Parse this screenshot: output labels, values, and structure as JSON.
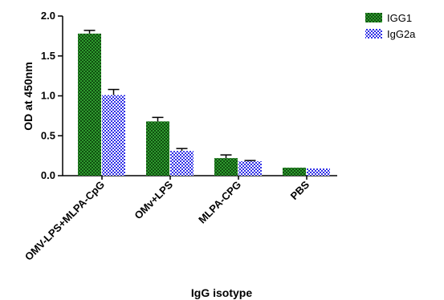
{
  "chart_data": {
    "type": "bar",
    "title": "",
    "xlabel": "IgG isotype",
    "ylabel": "OD at 450nm",
    "ylim": [
      0,
      2.0
    ],
    "yticks": [
      "0.0",
      "0.5",
      "1.0",
      "1.5",
      "2.0"
    ],
    "ytick_values": [
      0,
      0.5,
      1.0,
      1.5,
      2.0
    ],
    "categories": [
      "OMV-LPS+MLPA-CpG",
      "OMv+LPS",
      "MLPA-CPG",
      "PBS"
    ],
    "series": [
      {
        "name": "IGG1",
        "values": [
          1.78,
          0.68,
          0.22,
          0.1
        ],
        "errors": [
          0.04,
          0.05,
          0.04,
          0.0
        ],
        "color": "#1e7a1e",
        "pattern": "green-check"
      },
      {
        "name": "IgG2a",
        "values": [
          1.01,
          0.31,
          0.18,
          0.09
        ],
        "errors": [
          0.07,
          0.03,
          0.01,
          0.0
        ],
        "color": "#3a3aee",
        "pattern": "blue-check"
      }
    ],
    "grid": false,
    "legend_position": "top-right"
  }
}
